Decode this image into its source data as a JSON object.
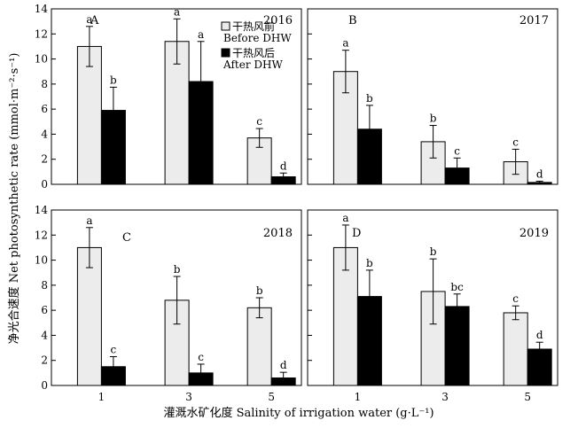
{
  "chart_data": {
    "type": "bar",
    "y_axis_title": "净光合速度 Net photosynthetic rate (mmol·m⁻²·s⁻¹)",
    "x_axis_title": "灌溉水矿化度 Salinity of irrigation water (g·L⁻¹)",
    "categories": [
      "1",
      "3",
      "5"
    ],
    "ylim": [
      0,
      14
    ],
    "yticks": [
      "0",
      "2",
      "4",
      "6",
      "8",
      "10",
      "12",
      "14"
    ],
    "legend": {
      "placement": "inside panel A, upper middle",
      "entries": [
        {
          "line1": "干热风前",
          "line2": "Before DHW",
          "color": "#ececec"
        },
        {
          "line1": "干热风后",
          "line2": "After DHW",
          "color": "#000000"
        }
      ]
    },
    "panels": [
      {
        "letter": "A",
        "year": "2016",
        "series": [
          {
            "values": [
              11.0,
              11.4,
              3.7
            ],
            "errors": [
              1.6,
              1.8,
              0.75
            ],
            "labels": [
              "a",
              "a",
              "c"
            ]
          },
          {
            "values": [
              5.9,
              8.2,
              0.6
            ],
            "errors": [
              1.85,
              3.2,
              0.3
            ],
            "labels": [
              "b",
              "a",
              "d"
            ]
          }
        ]
      },
      {
        "letter": "B",
        "year": "2017",
        "series": [
          {
            "values": [
              9.0,
              3.4,
              1.8
            ],
            "errors": [
              1.7,
              1.3,
              1.0
            ],
            "labels": [
              "a",
              "b",
              "c"
            ]
          },
          {
            "values": [
              4.4,
              1.3,
              0.15
            ],
            "errors": [
              1.9,
              0.8,
              0.1
            ],
            "labels": [
              "b",
              "c",
              "d"
            ]
          }
        ]
      },
      {
        "letter": "C",
        "year": "2018",
        "series": [
          {
            "values": [
              11.0,
              6.8,
              6.2
            ],
            "errors": [
              1.6,
              1.9,
              0.8
            ],
            "labels": [
              "a",
              "b",
              "b"
            ]
          },
          {
            "values": [
              1.5,
              1.0,
              0.6
            ],
            "errors": [
              0.8,
              0.7,
              0.45
            ],
            "labels": [
              "c",
              "c",
              "d"
            ]
          }
        ]
      },
      {
        "letter": "D",
        "year": "2019",
        "series": [
          {
            "values": [
              11.0,
              7.5,
              5.8
            ],
            "errors": [
              1.8,
              2.6,
              0.55
            ],
            "labels": [
              "a",
              "b",
              "c"
            ]
          },
          {
            "values": [
              7.1,
              6.3,
              2.9
            ],
            "errors": [
              2.1,
              1.0,
              0.55
            ],
            "labels": [
              "b",
              "bc",
              "d"
            ]
          }
        ]
      }
    ]
  }
}
